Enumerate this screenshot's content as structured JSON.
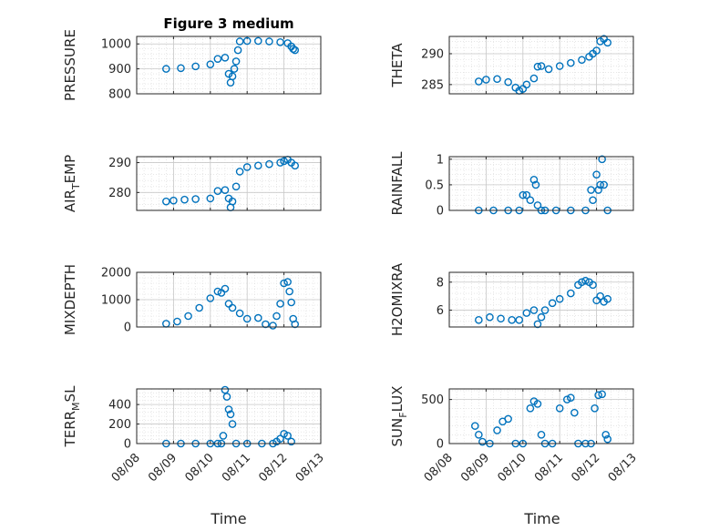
{
  "figure_title": "Figure 3 medium",
  "xlabel": "Time",
  "x_ticks": [
    "08/08",
    "08/09",
    "08/10",
    "08/11",
    "08/12",
    "08/13"
  ],
  "chart_data": [
    {
      "type": "scatter",
      "ylabel": "PRESSURE",
      "ylabel_sub": "",
      "ylim": [
        800,
        1030
      ],
      "yticks": [
        800,
        900,
        1000
      ],
      "x": [
        8.8,
        9.2,
        9.6,
        10.0,
        10.2,
        10.4,
        10.5,
        10.55,
        10.6,
        10.65,
        10.7,
        10.75,
        10.8,
        11.0,
        11.3,
        11.6,
        11.9,
        12.1,
        12.2,
        12.25,
        12.3
      ],
      "values": [
        900,
        903,
        910,
        918,
        940,
        945,
        880,
        845,
        870,
        900,
        930,
        975,
        1010,
        1012,
        1012,
        1010,
        1007,
        1003,
        990,
        980,
        975
      ]
    },
    {
      "type": "scatter",
      "ylabel": "THETA",
      "ylabel_sub": "",
      "ylim": [
        283.5,
        292.8
      ],
      "yticks": [
        285,
        290
      ],
      "x": [
        8.8,
        9.0,
        9.3,
        9.6,
        9.8,
        9.9,
        10.0,
        10.1,
        10.3,
        10.4,
        10.5,
        10.7,
        11.0,
        11.3,
        11.6,
        11.8,
        11.9,
        12.0,
        12.1,
        12.2,
        12.3
      ],
      "values": [
        285.5,
        285.8,
        285.9,
        285.4,
        284.5,
        284.0,
        284.3,
        285.0,
        286.0,
        287.9,
        288.0,
        287.5,
        288.0,
        288.5,
        289.0,
        289.5,
        290.0,
        290.5,
        292.0,
        292.4,
        291.8
      ]
    },
    {
      "type": "scatter",
      "ylabel": "AIR",
      "ylabel_sub": "TEMP",
      "ylim": [
        274,
        292
      ],
      "yticks": [
        280,
        290
      ],
      "x": [
        8.8,
        9.0,
        9.3,
        9.6,
        10.0,
        10.2,
        10.4,
        10.5,
        10.55,
        10.6,
        10.7,
        10.8,
        11.0,
        11.3,
        11.6,
        11.9,
        12.0,
        12.1,
        12.2,
        12.3
      ],
      "values": [
        277,
        277.3,
        277.6,
        277.8,
        278,
        280.5,
        280.8,
        278,
        275,
        277,
        282,
        287,
        288.5,
        289,
        289.5,
        290,
        290.5,
        291,
        290,
        289
      ]
    },
    {
      "type": "scatter",
      "ylabel": "RAINFALL",
      "ylabel_sub": "",
      "ylim": [
        0,
        1.05
      ],
      "yticks": [
        0,
        0.5,
        1
      ],
      "x": [
        8.8,
        9.2,
        9.6,
        9.9,
        10.0,
        10.1,
        10.2,
        10.3,
        10.35,
        10.4,
        10.5,
        10.6,
        10.9,
        11.3,
        11.7,
        11.85,
        11.9,
        12.0,
        12.05,
        12.1,
        12.15,
        12.2,
        12.3
      ],
      "values": [
        0,
        0,
        0,
        0,
        0.3,
        0.3,
        0.2,
        0.6,
        0.5,
        0.1,
        0,
        0,
        0,
        0,
        0,
        0.4,
        0.2,
        0.7,
        0.4,
        0.5,
        1.0,
        0.5,
        0
      ]
    },
    {
      "type": "scatter",
      "ylabel": "MIXDEPTH",
      "ylabel_sub": "",
      "ylim": [
        0,
        2000
      ],
      "yticks": [
        0,
        1000,
        2000
      ],
      "x": [
        8.8,
        9.1,
        9.4,
        9.7,
        10.0,
        10.2,
        10.3,
        10.4,
        10.5,
        10.6,
        10.8,
        11.0,
        11.3,
        11.5,
        11.7,
        11.8,
        11.9,
        12.0,
        12.1,
        12.15,
        12.2,
        12.25,
        12.3
      ],
      "values": [
        120,
        200,
        400,
        700,
        1050,
        1300,
        1250,
        1400,
        850,
        700,
        500,
        300,
        330,
        100,
        50,
        400,
        850,
        1600,
        1650,
        1300,
        900,
        300,
        100
      ]
    },
    {
      "type": "scatter",
      "ylabel": "H2OMIXRA",
      "ylabel_sub": "",
      "ylim": [
        4.8,
        8.7
      ],
      "yticks": [
        6,
        8
      ],
      "x": [
        8.8,
        9.1,
        9.4,
        9.7,
        9.9,
        10.1,
        10.3,
        10.4,
        10.5,
        10.6,
        10.8,
        11.0,
        11.3,
        11.5,
        11.6,
        11.7,
        11.8,
        11.9,
        12.0,
        12.1,
        12.2,
        12.3
      ],
      "values": [
        5.3,
        5.5,
        5.4,
        5.3,
        5.3,
        5.8,
        6.0,
        5.0,
        5.5,
        6.0,
        6.5,
        6.8,
        7.2,
        7.8,
        8.0,
        8.1,
        8.0,
        7.8,
        6.7,
        7.0,
        6.6,
        6.8
      ]
    },
    {
      "type": "scatter",
      "ylabel": "TERR",
      "ylabel_sub": "MSL",
      "ylim": [
        0,
        560
      ],
      "yticks": [
        0,
        200,
        400
      ],
      "x": [
        8.8,
        9.2,
        9.6,
        10.0,
        10.2,
        10.3,
        10.35,
        10.4,
        10.45,
        10.5,
        10.55,
        10.6,
        10.7,
        11.0,
        11.4,
        11.7,
        11.8,
        11.9,
        12.0,
        12.1,
        12.2
      ],
      "values": [
        0,
        0,
        0,
        0,
        0,
        0,
        80,
        550,
        480,
        350,
        300,
        200,
        0,
        0,
        0,
        0,
        20,
        50,
        100,
        80,
        20
      ]
    },
    {
      "type": "scatter",
      "ylabel": "SUN",
      "ylabel_sub": "FLUX",
      "ylim": [
        0,
        620
      ],
      "yticks": [
        0,
        500
      ],
      "x": [
        8.7,
        8.8,
        8.9,
        9.1,
        9.3,
        9.45,
        9.6,
        9.8,
        10.0,
        10.2,
        10.3,
        10.4,
        10.5,
        10.6,
        10.8,
        11.0,
        11.2,
        11.3,
        11.4,
        11.5,
        11.7,
        11.85,
        11.95,
        12.05,
        12.15,
        12.25,
        12.3
      ],
      "values": [
        200,
        100,
        20,
        0,
        150,
        250,
        280,
        0,
        0,
        400,
        480,
        450,
        100,
        0,
        0,
        400,
        500,
        520,
        350,
        0,
        0,
        0,
        400,
        550,
        560,
        100,
        50
      ]
    }
  ]
}
